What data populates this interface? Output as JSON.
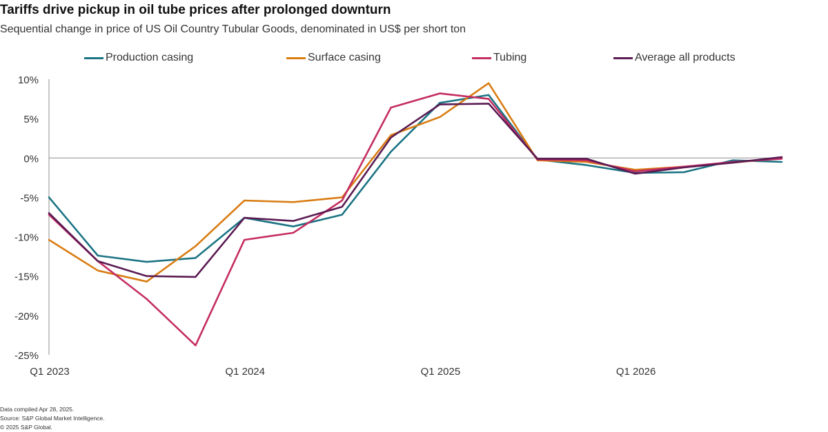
{
  "title": "Tariffs drive pickup in oil tube prices after prolonged downturn",
  "subtitle": "Sequential change in price of US Oil Country Tubular Goods, denominated in US$ per short ton",
  "chart_data": {
    "type": "line",
    "x": [
      "Q1 2023",
      "Q2 2023",
      "Q3 2023",
      "Q4 2023",
      "Q1 2024",
      "Q2 2024",
      "Q3 2024",
      "Q4 2024",
      "Q1 2025",
      "Q2 2025",
      "Q3 2025",
      "Q4 2025",
      "Q1 2026",
      "Q2 2026",
      "Q3 2026",
      "Q4 2026"
    ],
    "xticks": [
      {
        "label": "Q1 2023",
        "index": 0
      },
      {
        "label": "Q1 2024",
        "index": 4
      },
      {
        "label": "Q1 2025",
        "index": 8
      },
      {
        "label": "Q1 2026",
        "index": 12
      }
    ],
    "ylim": [
      -25,
      10
    ],
    "yticks": [
      10,
      5,
      0,
      -5,
      -10,
      -15,
      -20,
      -25
    ],
    "ytick_labels": [
      "10%",
      "5%",
      "0%",
      "-5%",
      "-10%",
      "-15%",
      "-20%",
      "-25%"
    ],
    "series": [
      {
        "name": "Production casing",
        "color": "#1a7383",
        "values": [
          -5.0,
          -12.4,
          -13.2,
          -12.7,
          -7.6,
          -8.7,
          -7.2,
          0.8,
          7.0,
          8.0,
          -0.2,
          -0.9,
          -1.9,
          -1.8,
          -0.3,
          -0.5
        ]
      },
      {
        "name": "Surface casing",
        "color": "#d97c12",
        "values": [
          -10.4,
          -14.3,
          -15.7,
          -11.2,
          -5.4,
          -5.6,
          -5.0,
          2.9,
          5.2,
          9.5,
          -0.3,
          -0.5,
          -1.5,
          -1.1,
          -0.6,
          0.0
        ]
      },
      {
        "name": "Tubing",
        "color": "#c42c62",
        "values": [
          -7.2,
          -13.1,
          -17.9,
          -23.8,
          -10.4,
          -9.5,
          -5.4,
          6.4,
          8.2,
          7.5,
          -0.2,
          -0.3,
          -1.7,
          -1.1,
          -0.5,
          -0.1
        ]
      },
      {
        "name": "Average all products",
        "color": "#5a1a52",
        "values": [
          -7.0,
          -13.1,
          -15.0,
          -15.1,
          -7.6,
          -8.0,
          -6.2,
          2.6,
          6.8,
          6.9,
          -0.1,
          -0.1,
          -2.0,
          -1.2,
          -0.6,
          0.1
        ]
      }
    ]
  },
  "footnotes": [
    "Data compiled Apr 28, 2025.",
    "Source: S&P Global Market Intelligence.",
    "© 2025 S&P Global."
  ]
}
